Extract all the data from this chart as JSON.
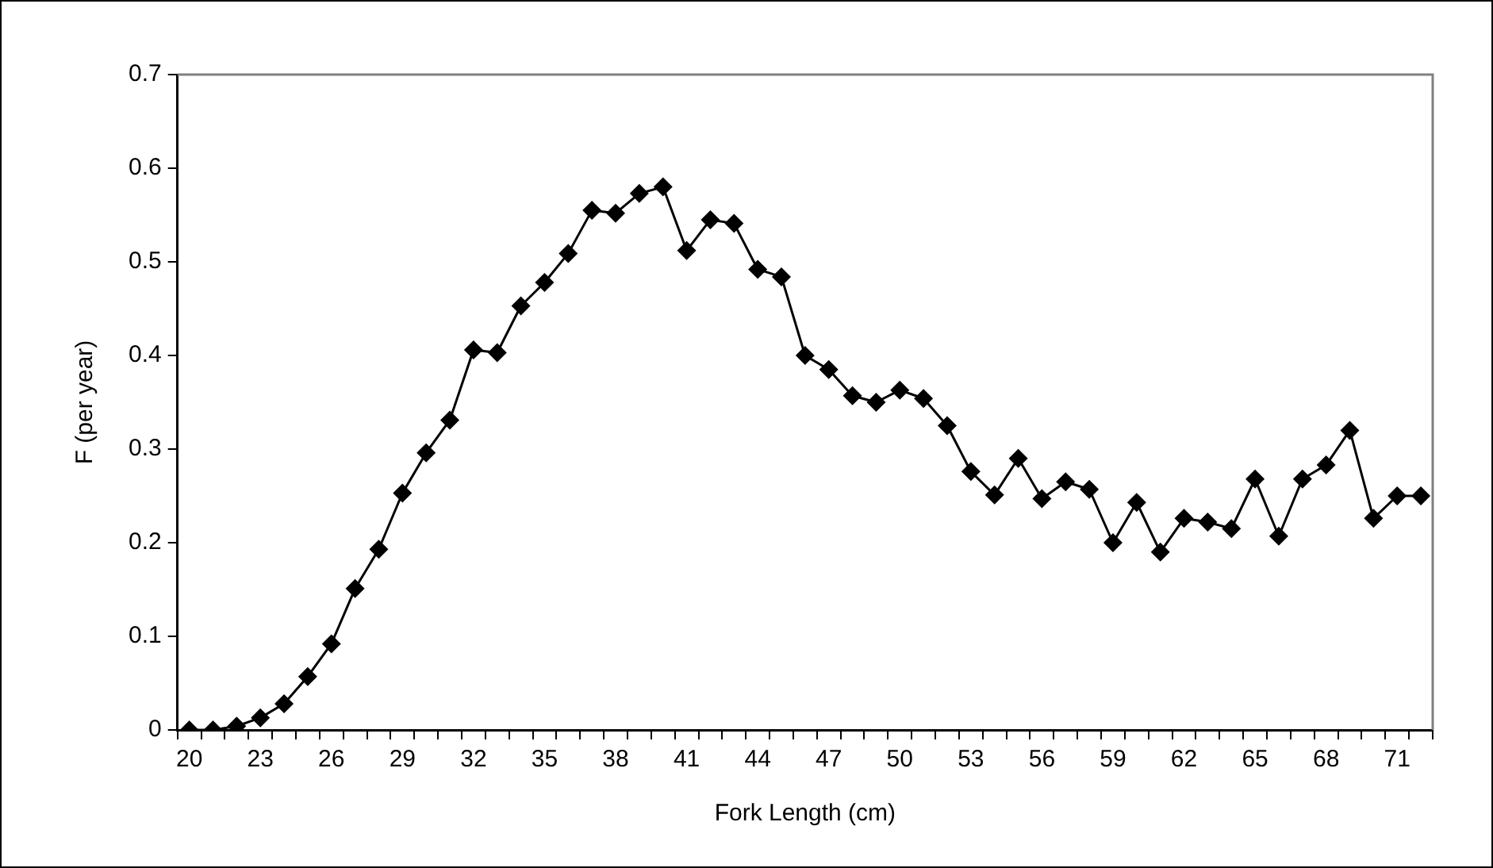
{
  "chart_data": {
    "type": "line",
    "xlabel": "Fork Length (cm)",
    "ylabel": "F (per year)",
    "categories": [
      "20",
      null,
      null,
      "23",
      null,
      null,
      "26",
      null,
      null,
      "29",
      null,
      null,
      "32",
      null,
      null,
      "35",
      null,
      null,
      "38",
      null,
      null,
      "41",
      null,
      null,
      "44",
      null,
      null,
      "47",
      null,
      null,
      "50",
      null,
      null,
      "53",
      null,
      null,
      "56",
      null,
      null,
      "59",
      null,
      null,
      "62",
      null,
      null,
      "65",
      null,
      null,
      "68",
      null,
      null,
      "71",
      null
    ],
    "values": [
      0,
      0,
      0.004,
      0.013,
      0.028,
      0.057,
      0.092,
      0.151,
      0.193,
      0.253,
      0.296,
      0.331,
      0.406,
      0.403,
      0.453,
      0.478,
      0.509,
      0.555,
      0.552,
      0.573,
      0.58,
      0.512,
      0.545,
      0.541,
      0.492,
      0.484,
      0.4,
      0.385,
      0.357,
      0.35,
      0.363,
      0.354,
      0.325,
      0.276,
      0.251,
      0.29,
      0.247,
      0.265,
      0.257,
      0.2,
      0.243,
      0.19,
      0.226,
      0.222,
      0.215,
      0.268,
      0.207,
      0.268,
      0.283,
      0.32,
      0.226,
      0.25,
      0.25
    ],
    "color": "#000000",
    "marker": "diamond",
    "line_style": "solid",
    "ylim": [
      0,
      0.7
    ],
    "yticks": [
      0,
      0.1,
      0.2,
      0.3,
      0.4,
      0.5,
      0.6,
      0.7
    ]
  }
}
